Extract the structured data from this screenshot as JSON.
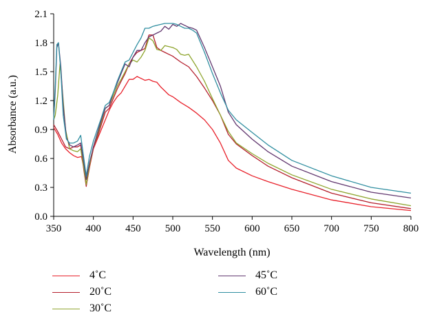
{
  "chart_data": {
    "type": "line",
    "title": "",
    "xlabel": "Wavelength (nm)",
    "ylabel": "Absorbance (a.u.)",
    "xlim": [
      350,
      800
    ],
    "ylim": [
      0.0,
      2.1
    ],
    "xticks": [
      "350",
      "400",
      "450",
      "500",
      "550",
      "600",
      "650",
      "700",
      "750",
      "800"
    ],
    "yticks": [
      "0.0",
      "0.3",
      "0.6",
      "0.9",
      "1.2",
      "1.5",
      "1.8",
      "2.1"
    ],
    "grid": false,
    "legend_position": "bottom",
    "series": [
      {
        "name": "4˚C",
        "color": "#e8202a",
        "points": [
          [
            350,
            0.92
          ],
          [
            355,
            0.85
          ],
          [
            360,
            0.76
          ],
          [
            365,
            0.7
          ],
          [
            370,
            0.66
          ],
          [
            375,
            0.63
          ],
          [
            380,
            0.61
          ],
          [
            385,
            0.62
          ],
          [
            388,
            0.5
          ],
          [
            391,
            0.32
          ],
          [
            395,
            0.5
          ],
          [
            400,
            0.7
          ],
          [
            405,
            0.8
          ],
          [
            410,
            0.9
          ],
          [
            415,
            1.0
          ],
          [
            420,
            1.1
          ],
          [
            425,
            1.18
          ],
          [
            430,
            1.24
          ],
          [
            435,
            1.28
          ],
          [
            440,
            1.35
          ],
          [
            445,
            1.42
          ],
          [
            450,
            1.42
          ],
          [
            455,
            1.45
          ],
          [
            460,
            1.43
          ],
          [
            465,
            1.41
          ],
          [
            470,
            1.42
          ],
          [
            475,
            1.4
          ],
          [
            480,
            1.39
          ],
          [
            485,
            1.34
          ],
          [
            490,
            1.3
          ],
          [
            495,
            1.26
          ],
          [
            500,
            1.24
          ],
          [
            510,
            1.18
          ],
          [
            520,
            1.13
          ],
          [
            530,
            1.07
          ],
          [
            540,
            1.0
          ],
          [
            550,
            0.9
          ],
          [
            560,
            0.76
          ],
          [
            570,
            0.58
          ],
          [
            580,
            0.5
          ],
          [
            600,
            0.42
          ],
          [
            620,
            0.36
          ],
          [
            650,
            0.28
          ],
          [
            700,
            0.17
          ],
          [
            750,
            0.1
          ],
          [
            800,
            0.06
          ]
        ]
      },
      {
        "name": "20˚C",
        "color": "#b41e2c",
        "points": [
          [
            350,
            0.95
          ],
          [
            355,
            0.88
          ],
          [
            360,
            0.8
          ],
          [
            365,
            0.72
          ],
          [
            370,
            0.7
          ],
          [
            375,
            0.72
          ],
          [
            380,
            0.72
          ],
          [
            384,
            0.74
          ],
          [
            388,
            0.48
          ],
          [
            391,
            0.31
          ],
          [
            395,
            0.52
          ],
          [
            400,
            0.72
          ],
          [
            405,
            0.82
          ],
          [
            410,
            0.95
          ],
          [
            415,
            1.08
          ],
          [
            420,
            1.12
          ],
          [
            425,
            1.22
          ],
          [
            430,
            1.32
          ],
          [
            435,
            1.4
          ],
          [
            440,
            1.48
          ],
          [
            445,
            1.58
          ],
          [
            450,
            1.65
          ],
          [
            455,
            1.7
          ],
          [
            460,
            1.72
          ],
          [
            465,
            1.74
          ],
          [
            470,
            1.88
          ],
          [
            475,
            1.88
          ],
          [
            480,
            1.75
          ],
          [
            485,
            1.72
          ],
          [
            490,
            1.7
          ],
          [
            495,
            1.68
          ],
          [
            500,
            1.66
          ],
          [
            510,
            1.6
          ],
          [
            520,
            1.55
          ],
          [
            530,
            1.45
          ],
          [
            540,
            1.33
          ],
          [
            550,
            1.2
          ],
          [
            560,
            1.05
          ],
          [
            570,
            0.85
          ],
          [
            580,
            0.75
          ],
          [
            600,
            0.63
          ],
          [
            620,
            0.52
          ],
          [
            650,
            0.4
          ],
          [
            700,
            0.24
          ],
          [
            750,
            0.14
          ],
          [
            800,
            0.08
          ]
        ]
      },
      {
        "name": "30˚C",
        "color": "#8da42c",
        "points": [
          [
            350,
            1.0
          ],
          [
            352,
            1.05
          ],
          [
            355,
            1.25
          ],
          [
            358,
            1.58
          ],
          [
            361,
            1.3
          ],
          [
            365,
            0.9
          ],
          [
            370,
            0.7
          ],
          [
            375,
            0.68
          ],
          [
            380,
            0.67
          ],
          [
            384,
            0.7
          ],
          [
            388,
            0.5
          ],
          [
            391,
            0.33
          ],
          [
            395,
            0.52
          ],
          [
            400,
            0.72
          ],
          [
            405,
            0.84
          ],
          [
            410,
            0.98
          ],
          [
            415,
            1.12
          ],
          [
            420,
            1.15
          ],
          [
            425,
            1.25
          ],
          [
            430,
            1.35
          ],
          [
            435,
            1.42
          ],
          [
            440,
            1.5
          ],
          [
            445,
            1.58
          ],
          [
            450,
            1.62
          ],
          [
            455,
            1.6
          ],
          [
            460,
            1.65
          ],
          [
            465,
            1.72
          ],
          [
            470,
            1.85
          ],
          [
            475,
            1.82
          ],
          [
            480,
            1.73
          ],
          [
            485,
            1.72
          ],
          [
            490,
            1.77
          ],
          [
            495,
            1.76
          ],
          [
            500,
            1.75
          ],
          [
            505,
            1.73
          ],
          [
            510,
            1.68
          ],
          [
            515,
            1.67
          ],
          [
            520,
            1.68
          ],
          [
            530,
            1.55
          ],
          [
            540,
            1.4
          ],
          [
            550,
            1.22
          ],
          [
            560,
            1.05
          ],
          [
            570,
            0.88
          ],
          [
            580,
            0.76
          ],
          [
            600,
            0.65
          ],
          [
            620,
            0.55
          ],
          [
            650,
            0.43
          ],
          [
            700,
            0.28
          ],
          [
            750,
            0.18
          ],
          [
            800,
            0.11
          ]
        ]
      },
      {
        "name": "45˚C",
        "color": "#60366e",
        "points": [
          [
            350,
            1.0
          ],
          [
            352,
            1.3
          ],
          [
            354,
            1.75
          ],
          [
            356,
            1.8
          ],
          [
            359,
            1.55
          ],
          [
            362,
            1.15
          ],
          [
            366,
            0.82
          ],
          [
            370,
            0.74
          ],
          [
            375,
            0.72
          ],
          [
            380,
            0.74
          ],
          [
            384,
            0.76
          ],
          [
            388,
            0.55
          ],
          [
            391,
            0.38
          ],
          [
            395,
            0.55
          ],
          [
            400,
            0.72
          ],
          [
            405,
            0.86
          ],
          [
            410,
            1.0
          ],
          [
            415,
            1.12
          ],
          [
            420,
            1.15
          ],
          [
            425,
            1.28
          ],
          [
            430,
            1.38
          ],
          [
            435,
            1.48
          ],
          [
            440,
            1.58
          ],
          [
            445,
            1.55
          ],
          [
            450,
            1.65
          ],
          [
            455,
            1.72
          ],
          [
            460,
            1.72
          ],
          [
            465,
            1.8
          ],
          [
            470,
            1.86
          ],
          [
            475,
            1.88
          ],
          [
            480,
            1.9
          ],
          [
            485,
            1.92
          ],
          [
            490,
            1.97
          ],
          [
            495,
            1.94
          ],
          [
            500,
            1.99
          ],
          [
            505,
            1.97
          ],
          [
            510,
            2.0
          ],
          [
            515,
            1.98
          ],
          [
            520,
            1.96
          ],
          [
            525,
            1.95
          ],
          [
            530,
            1.93
          ],
          [
            540,
            1.75
          ],
          [
            550,
            1.55
          ],
          [
            560,
            1.35
          ],
          [
            570,
            1.08
          ],
          [
            580,
            0.95
          ],
          [
            600,
            0.8
          ],
          [
            620,
            0.67
          ],
          [
            650,
            0.52
          ],
          [
            700,
            0.36
          ],
          [
            750,
            0.25
          ],
          [
            800,
            0.19
          ]
        ]
      },
      {
        "name": "60˚C",
        "color": "#2f8ea0",
        "points": [
          [
            350,
            1.0
          ],
          [
            352,
            1.35
          ],
          [
            354,
            1.78
          ],
          [
            356,
            1.8
          ],
          [
            359,
            1.5
          ],
          [
            362,
            1.05
          ],
          [
            366,
            0.8
          ],
          [
            370,
            0.76
          ],
          [
            375,
            0.76
          ],
          [
            380,
            0.78
          ],
          [
            384,
            0.84
          ],
          [
            388,
            0.6
          ],
          [
            391,
            0.42
          ],
          [
            395,
            0.62
          ],
          [
            400,
            0.78
          ],
          [
            405,
            0.9
          ],
          [
            410,
            1.02
          ],
          [
            415,
            1.15
          ],
          [
            420,
            1.18
          ],
          [
            425,
            1.28
          ],
          [
            430,
            1.4
          ],
          [
            435,
            1.5
          ],
          [
            440,
            1.6
          ],
          [
            445,
            1.62
          ],
          [
            450,
            1.7
          ],
          [
            455,
            1.78
          ],
          [
            460,
            1.85
          ],
          [
            465,
            1.95
          ],
          [
            470,
            1.95
          ],
          [
            475,
            1.97
          ],
          [
            480,
            1.98
          ],
          [
            485,
            1.99
          ],
          [
            490,
            2.0
          ],
          [
            495,
            2.0
          ],
          [
            500,
            2.0
          ],
          [
            505,
            1.99
          ],
          [
            510,
            1.97
          ],
          [
            515,
            1.95
          ],
          [
            520,
            1.95
          ],
          [
            525,
            1.93
          ],
          [
            530,
            1.9
          ],
          [
            540,
            1.7
          ],
          [
            550,
            1.48
          ],
          [
            560,
            1.28
          ],
          [
            570,
            1.1
          ],
          [
            580,
            1.0
          ],
          [
            600,
            0.87
          ],
          [
            620,
            0.74
          ],
          [
            650,
            0.58
          ],
          [
            700,
            0.42
          ],
          [
            750,
            0.3
          ],
          [
            800,
            0.24
          ]
        ]
      }
    ]
  }
}
